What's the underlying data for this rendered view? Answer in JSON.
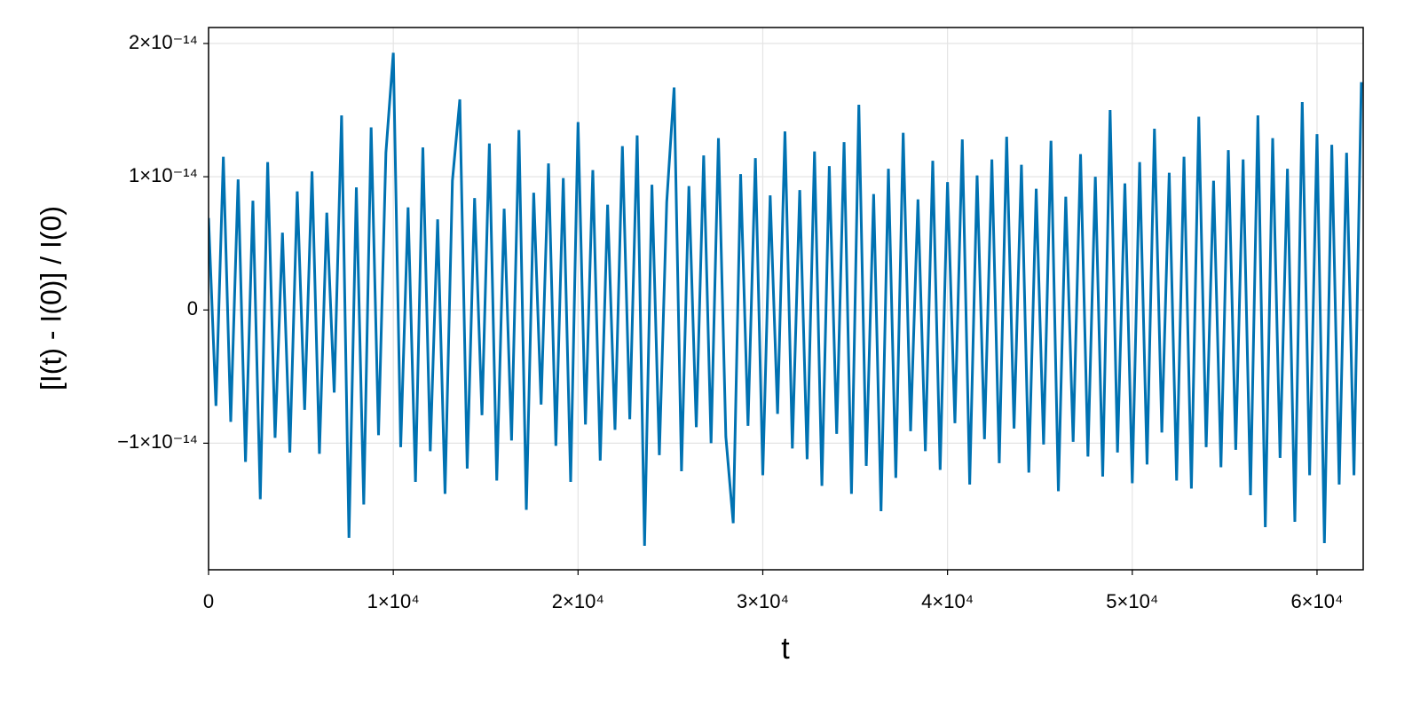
{
  "chart_data": {
    "type": "line",
    "x_label": "t",
    "y_label": "[I(t) - I(0)] / I(0)",
    "xlim": [
      0,
      62500
    ],
    "ylim": [
      -1.95e-14,
      2.12e-14
    ],
    "xticks": [
      0,
      {
        "value": 10000,
        "label": "1×10⁴"
      },
      {
        "value": 20000,
        "label": "2×10⁴"
      },
      {
        "value": 30000,
        "label": "3×10⁴"
      },
      {
        "value": 40000,
        "label": "4×10⁴"
      },
      {
        "value": 50000,
        "label": "5×10⁴"
      },
      {
        "value": 60000,
        "label": "6×10⁴"
      }
    ],
    "yticks": [
      {
        "value": -1e-14,
        "label": "−1×10⁻¹⁴"
      },
      0,
      {
        "value": 1e-14,
        "label": "1×10⁻¹⁴"
      },
      {
        "value": 2e-14,
        "label": "2×10⁻¹⁴"
      }
    ],
    "grid": true,
    "series": [
      {
        "color": "#0072b2",
        "x": [
          0,
          400,
          800,
          1200,
          1600,
          2000,
          2400,
          2800,
          3200,
          3600,
          4000,
          4400,
          4800,
          5200,
          5600,
          6000,
          6400,
          6800,
          7200,
          7600,
          8000,
          8400,
          8800,
          9200,
          9600,
          10000,
          10400,
          10800,
          11200,
          11600,
          12000,
          12400,
          12800,
          13200,
          13600,
          14000,
          14400,
          14800,
          15200,
          15600,
          16000,
          16400,
          16800,
          17200,
          17600,
          18000,
          18400,
          18800,
          19200,
          19600,
          20000,
          20400,
          20800,
          21200,
          21600,
          22000,
          22400,
          22800,
          23200,
          23600,
          24000,
          24400,
          24800,
          25200,
          25600,
          26000,
          26400,
          26800,
          27200,
          27600,
          28000,
          28400,
          28800,
          29200,
          29600,
          30000,
          30400,
          30800,
          31200,
          31600,
          32000,
          32400,
          32800,
          33200,
          33600,
          34000,
          34400,
          34800,
          35200,
          35600,
          36000,
          36400,
          36800,
          37200,
          37600,
          38000,
          38400,
          38800,
          39200,
          39600,
          40000,
          40400,
          40800,
          41200,
          41600,
          42000,
          42400,
          42800,
          43200,
          43600,
          44000,
          44400,
          44800,
          45200,
          45600,
          46000,
          46400,
          46800,
          47200,
          47600,
          48000,
          48400,
          48800,
          49200,
          49600,
          50000,
          50400,
          50800,
          51200,
          51600,
          52000,
          52400,
          52800,
          53200,
          53600,
          54000,
          54400,
          54800,
          55200,
          55600,
          56000,
          56400,
          56800,
          57200,
          57600,
          58000,
          58400,
          58800,
          59200,
          59600,
          60000,
          60400,
          60800,
          61200,
          61600,
          62000,
          62400
        ],
        "values": [
          6.9e-15,
          -7.2e-15,
          1.15e-14,
          -8.4e-15,
          9.8e-15,
          -1.14e-14,
          8.2e-15,
          -1.42e-14,
          1.11e-14,
          -9.6e-15,
          5.8e-15,
          -1.07e-14,
          8.9e-15,
          -7.5e-15,
          1.04e-14,
          -1.08e-14,
          7.3e-15,
          -6.2e-15,
          1.46e-14,
          -1.71e-14,
          9.2e-15,
          -1.46e-14,
          1.37e-14,
          -9.4e-15,
          1.18e-14,
          1.93e-14,
          -1.03e-14,
          7.7e-15,
          -1.29e-14,
          1.22e-14,
          -1.06e-14,
          6.8e-15,
          -1.38e-14,
          9.7e-15,
          1.58e-14,
          -1.19e-14,
          8.4e-15,
          -7.9e-15,
          1.25e-14,
          -1.28e-14,
          7.6e-15,
          -9.8e-15,
          1.35e-14,
          -1.5e-14,
          8.8e-15,
          -7.1e-15,
          1.1e-14,
          -1.02e-14,
          9.9e-15,
          -1.29e-14,
          1.41e-14,
          -8.6e-15,
          1.05e-14,
          -1.13e-14,
          7.9e-15,
          -9e-15,
          1.23e-14,
          -8.2e-15,
          1.31e-14,
          -1.77e-14,
          9.4e-15,
          -1.09e-14,
          8.1e-15,
          1.67e-14,
          -1.21e-14,
          9.3e-15,
          -8.8e-15,
          1.16e-14,
          -1e-14,
          1.29e-14,
          -9.5e-15,
          -1.6e-14,
          1.02e-14,
          -8.7e-15,
          1.14e-14,
          -1.24e-14,
          8.6e-15,
          -7.8e-15,
          1.34e-14,
          -1.04e-14,
          9e-15,
          -1.12e-14,
          1.19e-14,
          -1.32e-14,
          1.08e-14,
          -9.3e-15,
          1.26e-14,
          -1.38e-14,
          1.54e-14,
          -1.17e-14,
          8.7e-15,
          -1.51e-14,
          1.06e-14,
          -1.26e-14,
          1.33e-14,
          -9.1e-15,
          8.3e-15,
          -1.06e-14,
          1.12e-14,
          -1.2e-14,
          9.6e-15,
          -8.5e-15,
          1.28e-14,
          -1.31e-14,
          1.01e-14,
          -9.7e-15,
          1.13e-14,
          -1.15e-14,
          1.3e-14,
          -8.9e-15,
          1.09e-14,
          -1.22e-14,
          9.1e-15,
          -1.01e-14,
          1.27e-14,
          -1.36e-14,
          8.5e-15,
          -9.9e-15,
          1.17e-14,
          -1.1e-14,
          1e-14,
          -1.25e-14,
          1.5e-14,
          -1.07e-14,
          9.5e-15,
          -1.3e-14,
          1.11e-14,
          -1.16e-14,
          1.36e-14,
          -9.2e-15,
          1.03e-14,
          -1.28e-14,
          1.15e-14,
          -1.34e-14,
          1.45e-14,
          -1.03e-14,
          9.7e-15,
          -1.18e-14,
          1.2e-14,
          -1.05e-14,
          1.13e-14,
          -1.39e-14,
          1.46e-14,
          -1.63e-14,
          1.29e-14,
          -1.11e-14,
          1.06e-14,
          -1.59e-14,
          1.56e-14,
          -1.24e-14,
          1.32e-14,
          -1.75e-14,
          1.24e-14,
          -1.31e-14,
          1.18e-14,
          -1.24e-14,
          1.71e-14
        ]
      }
    ]
  }
}
